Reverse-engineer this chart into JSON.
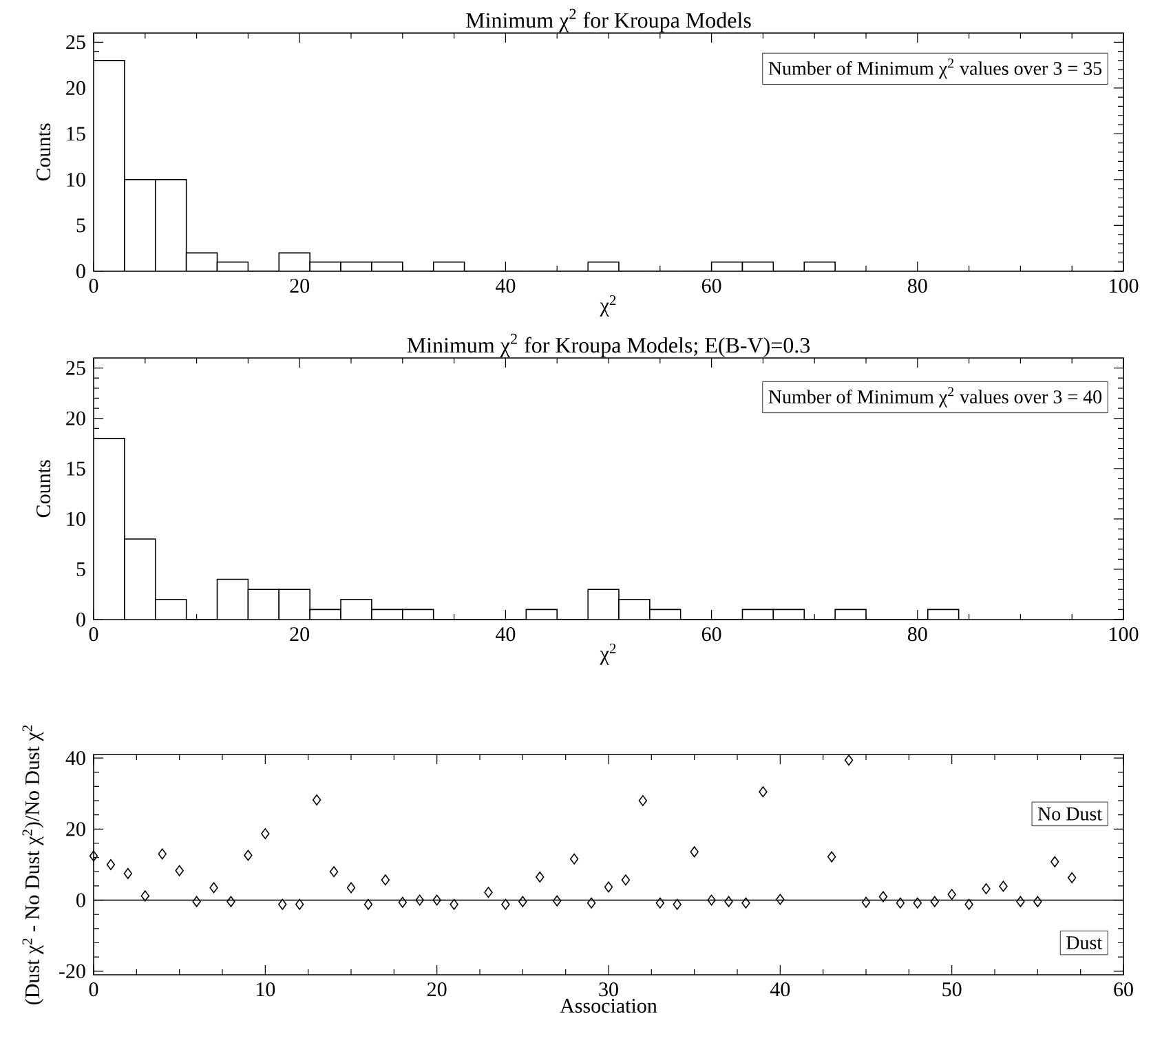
{
  "chart_data": [
    {
      "type": "histogram",
      "title": "Minimum χ$^{2}$ for Kroupa Models",
      "xlabel": "χ$^{2}$",
      "ylabel": "Counts",
      "color": "#000000",
      "bins": [
        0,
        3,
        6,
        9,
        12,
        15,
        18,
        21,
        24,
        27,
        30,
        33,
        36,
        39,
        42,
        45,
        48,
        51,
        54,
        57,
        60,
        63,
        66,
        69,
        72
      ],
      "values": [
        23,
        10,
        10,
        2,
        1,
        0,
        2,
        1,
        1,
        1,
        0,
        1,
        0,
        0,
        0,
        0,
        1,
        0,
        0,
        0,
        1,
        1,
        0,
        1
      ],
      "xlim": [
        0,
        100
      ],
      "ylim": [
        0,
        26
      ],
      "xticks": [
        0,
        20,
        40,
        60,
        80,
        100
      ],
      "yticks": [
        0,
        5,
        10,
        15,
        20,
        25
      ],
      "annotations": [
        "Number of Minimum χ$^{2}$ values over 3 = 35"
      ]
    },
    {
      "type": "histogram",
      "title": "Minimum χ$^{2}$ for Kroupa Models; E(B-V)=0.3",
      "xlabel": "χ$^{2}$",
      "ylabel": "Counts",
      "color": "#000000",
      "bins": [
        0,
        3,
        6,
        9,
        12,
        15,
        18,
        21,
        24,
        27,
        30,
        33,
        36,
        39,
        42,
        45,
        48,
        51,
        54,
        57,
        60,
        63,
        66,
        69,
        72,
        75,
        78,
        81,
        84
      ],
      "values": [
        18,
        8,
        2,
        0,
        4,
        3,
        3,
        1,
        2,
        1,
        1,
        0,
        0,
        0,
        1,
        0,
        3,
        2,
        1,
        0,
        0,
        1,
        1,
        0,
        1,
        0,
        0,
        1
      ],
      "xlim": [
        0,
        100
      ],
      "ylim": [
        0,
        26
      ],
      "xticks": [
        0,
        20,
        40,
        60,
        80,
        100
      ],
      "yticks": [
        0,
        5,
        10,
        15,
        20,
        25
      ],
      "annotations": [
        "Number of Minimum χ$^{2}$ values over 3 = 40"
      ]
    },
    {
      "type": "scatter",
      "xlabel": "Association",
      "ylabel": "(Dust χ$^{2}$ - No Dust χ$^{2}$)/No Dust χ$^{2}$",
      "color": "#000000",
      "marker": "diamond",
      "x": [
        0,
        1,
        2,
        3,
        4,
        5,
        6,
        7,
        8,
        9,
        10,
        11,
        12,
        13,
        14,
        15,
        16,
        17,
        18,
        19,
        20,
        21,
        23,
        24,
        25,
        26,
        27,
        28,
        29,
        30,
        31,
        32,
        33,
        34,
        35,
        36,
        37,
        38,
        39,
        40,
        43,
        44,
        45,
        46,
        47,
        48,
        49,
        50,
        51,
        52,
        53,
        54,
        55,
        56,
        57
      ],
      "values": [
        12.4,
        10,
        7.5,
        1.2,
        13,
        8.3,
        -0.4,
        3.5,
        -0.4,
        12.6,
        18.7,
        -1.2,
        -1.2,
        28.2,
        8,
        3.5,
        -1.2,
        5.7,
        -0.6,
        0,
        0,
        -1.2,
        2.2,
        -1.2,
        -0.4,
        6.5,
        -0.2,
        11.6,
        -0.8,
        3.7,
        5.7,
        28,
        -0.8,
        -1.2,
        13.6,
        0,
        -0.4,
        -0.8,
        30.5,
        0.2,
        12.2,
        39.4,
        -0.6,
        1,
        -0.8,
        -0.8,
        -0.4,
        1.6,
        -1.2,
        3.2,
        3.9,
        -0.4,
        -0.4,
        10.8,
        6.3
      ],
      "xlim": [
        0,
        60
      ],
      "ylim": [
        -21,
        41
      ],
      "xticks": [
        0,
        10,
        20,
        30,
        40,
        50,
        60
      ],
      "yticks": [
        -20,
        0,
        20,
        40
      ],
      "ref_lines": [
        {
          "axis": "y",
          "value": 0
        }
      ],
      "annotations": [
        "No Dust",
        "Dust"
      ]
    }
  ]
}
